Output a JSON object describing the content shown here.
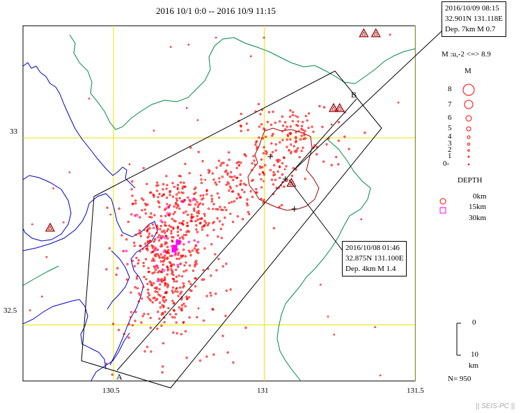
{
  "title": "2016 10/1 0:0 -- 2016 10/9 11:15",
  "map": {
    "lon_range": [
      130.2,
      131.5
    ],
    "lat_range": [
      32.35,
      33.3
    ],
    "lon_ticks": [
      {
        "value": 130.5,
        "label": "130.5"
      },
      {
        "value": 131,
        "label": "131"
      },
      {
        "value": 131.5,
        "label": "131.5"
      }
    ],
    "lat_ticks": [
      {
        "value": 33,
        "label": "33"
      },
      {
        "value": 32.5,
        "label": "32.5"
      }
    ],
    "cross_section_labels": {
      "a": "A",
      "b": "B"
    },
    "volcanoes": [
      {
        "lon": 131.33,
        "lat": 33.28
      },
      {
        "lon": 131.37,
        "lat": 33.28
      },
      {
        "lon": 131.23,
        "lat": 33.08
      },
      {
        "lon": 131.25,
        "lat": 33.08
      },
      {
        "lon": 131.09,
        "lat": 32.88
      },
      {
        "lon": 130.29,
        "lat": 32.76
      }
    ],
    "crosses": [
      {
        "lon": 131.02,
        "lat": 32.95
      },
      {
        "lon": 131.07,
        "lat": 32.89
      },
      {
        "lon": 131.1,
        "lat": 32.81
      }
    ]
  },
  "callout_top": {
    "line1": "2016/10/09 08:15",
    "line2": "32.901N   131.118E",
    "line3": "Dep. 7km    M 0.7"
  },
  "callout_mid": {
    "line1": "2016/10/08 01:46",
    "line2": "32.875N   131.100E",
    "line3": "Dep. 4km    M 1.4"
  },
  "magnitude_legend": {
    "range_text": "M :u,-2 <=> 8.9",
    "title": "M",
    "levels": [
      "8",
      "7",
      "6",
      "5",
      "4",
      "3",
      "2",
      "1",
      "0-"
    ]
  },
  "depth_legend": {
    "title": "DEPTH",
    "entries": [
      {
        "label": "0km",
        "color": "#ff0000",
        "shape": "circle"
      },
      {
        "label": "15km",
        "color": "#ff00ff",
        "shape": "square"
      },
      {
        "label": "30km",
        "color": "#ff00ff",
        "shape": "square"
      }
    ]
  },
  "scale_bar": {
    "top_label": "0",
    "bottom_label": "10",
    "unit": "km"
  },
  "count_label": "N= 950",
  "footer": "|| SEIS-PC ||",
  "colors": {
    "grid": "#e6e600",
    "coast": "#0000cc",
    "pref_border": "#008844",
    "caldera": "#990000",
    "quake": "#ff0000",
    "quake_deep": "#ff00ff",
    "volcano": "#990000"
  }
}
